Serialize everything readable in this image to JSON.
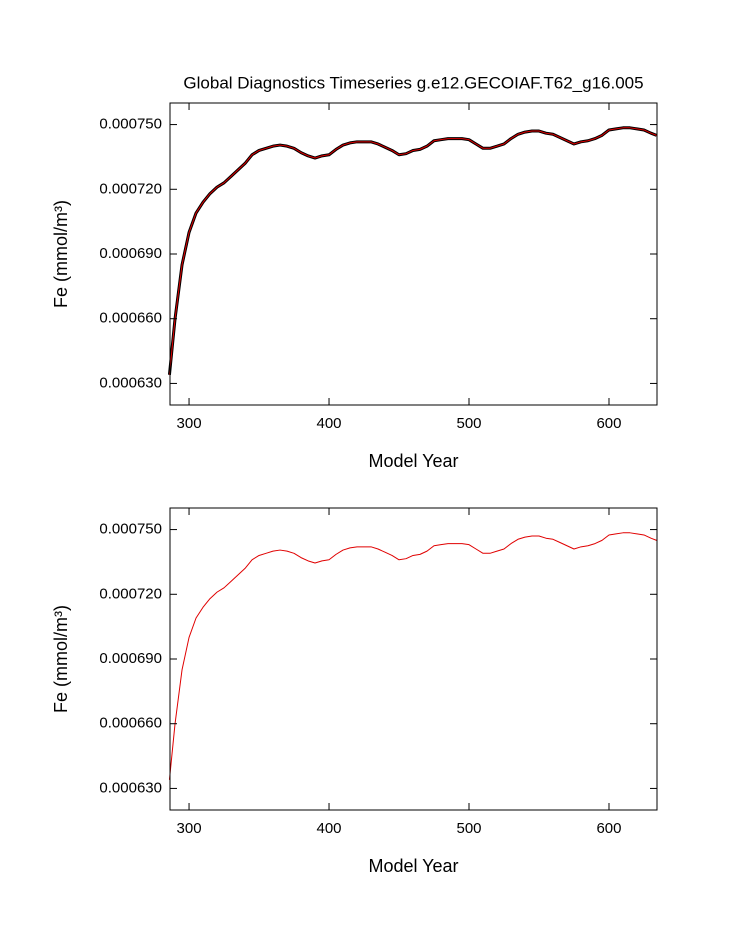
{
  "chart_data": [
    {
      "type": "line",
      "title": "Global Diagnostics Timeseries g.e12.GECOIAF.T62_g16.005",
      "x_label": "Model Year",
      "y_label": "Fe (mmol/m³)",
      "x": [
        286,
        290,
        295,
        300,
        305,
        310,
        315,
        320,
        325,
        330,
        335,
        340,
        345,
        350,
        355,
        360,
        365,
        370,
        375,
        380,
        385,
        390,
        395,
        400,
        405,
        410,
        415,
        420,
        425,
        430,
        435,
        440,
        445,
        450,
        455,
        460,
        465,
        470,
        475,
        480,
        485,
        490,
        495,
        500,
        505,
        510,
        515,
        520,
        525,
        530,
        535,
        540,
        545,
        550,
        555,
        560,
        565,
        570,
        575,
        580,
        585,
        590,
        595,
        600,
        605,
        610,
        615,
        620,
        625,
        630,
        634
      ],
      "values": [
        0.000634,
        0.00066,
        0.000685,
        0.0007,
        0.000709,
        0.000714,
        0.000718,
        0.000721,
        0.000723,
        0.000726,
        0.000729,
        0.000732,
        0.000736,
        0.000738,
        0.000739,
        0.00074,
        0.0007405,
        0.00074,
        0.000739,
        0.000737,
        0.0007355,
        0.0007345,
        0.0007355,
        0.000736,
        0.0007385,
        0.0007405,
        0.0007415,
        0.000742,
        0.000742,
        0.000742,
        0.000741,
        0.0007395,
        0.000738,
        0.000736,
        0.0007365,
        0.000738,
        0.0007385,
        0.00074,
        0.0007425,
        0.000743,
        0.0007435,
        0.0007435,
        0.0007435,
        0.000743,
        0.000741,
        0.000739,
        0.000739,
        0.00074,
        0.000741,
        0.0007435,
        0.0007455,
        0.0007465,
        0.000747,
        0.000747,
        0.000746,
        0.0007455,
        0.000744,
        0.0007425,
        0.000741,
        0.000742,
        0.0007425,
        0.0007435,
        0.000745,
        0.0007475,
        0.000748,
        0.0007485,
        0.0007485,
        0.000748,
        0.0007475,
        0.000746,
        0.000745
      ],
      "colors": [
        "#000000",
        "#e00000"
      ],
      "xlim": [
        286.4,
        634.3
      ],
      "xticks": [
        300,
        400,
        500,
        600
      ],
      "ylim": [
        0.00062,
        0.00076
      ],
      "yticks": [
        {
          "value": 0.00063,
          "label": "0.000630"
        },
        {
          "value": 0.00066,
          "label": "0.000660"
        },
        {
          "value": 0.00069,
          "label": "0.000690"
        },
        {
          "value": 0.00072,
          "label": "0.000720"
        },
        {
          "value": 0.00075,
          "label": "0.000750"
        }
      ]
    },
    {
      "type": "line",
      "x_label": "Model Year",
      "y_label": "Fe (mmol/m³)",
      "x": [
        286,
        290,
        295,
        300,
        305,
        310,
        315,
        320,
        325,
        330,
        335,
        340,
        345,
        350,
        355,
        360,
        365,
        370,
        375,
        380,
        385,
        390,
        395,
        400,
        405,
        410,
        415,
        420,
        425,
        430,
        435,
        440,
        445,
        450,
        455,
        460,
        465,
        470,
        475,
        480,
        485,
        490,
        495,
        500,
        505,
        510,
        515,
        520,
        525,
        530,
        535,
        540,
        545,
        550,
        555,
        560,
        565,
        570,
        575,
        580,
        585,
        590,
        595,
        600,
        605,
        610,
        615,
        620,
        625,
        630,
        634
      ],
      "values": [
        0.000634,
        0.00066,
        0.000685,
        0.0007,
        0.000709,
        0.000714,
        0.000718,
        0.000721,
        0.000723,
        0.000726,
        0.000729,
        0.000732,
        0.000736,
        0.000738,
        0.000739,
        0.00074,
        0.0007405,
        0.00074,
        0.000739,
        0.000737,
        0.0007355,
        0.0007345,
        0.0007355,
        0.000736,
        0.0007385,
        0.0007405,
        0.0007415,
        0.000742,
        0.000742,
        0.000742,
        0.000741,
        0.0007395,
        0.000738,
        0.000736,
        0.0007365,
        0.000738,
        0.0007385,
        0.00074,
        0.0007425,
        0.000743,
        0.0007435,
        0.0007435,
        0.0007435,
        0.000743,
        0.000741,
        0.000739,
        0.000739,
        0.00074,
        0.000741,
        0.0007435,
        0.0007455,
        0.0007465,
        0.000747,
        0.000747,
        0.000746,
        0.0007455,
        0.000744,
        0.0007425,
        0.000741,
        0.000742,
        0.0007425,
        0.0007435,
        0.000745,
        0.0007475,
        0.000748,
        0.0007485,
        0.0007485,
        0.000748,
        0.0007475,
        0.000746,
        0.000745
      ],
      "colors": [
        "#e00000"
      ],
      "xlim": [
        286.4,
        634.3
      ],
      "xticks": [
        300,
        400,
        500,
        600
      ],
      "ylim": [
        0.00062,
        0.00076
      ],
      "yticks": [
        {
          "value": 0.00063,
          "label": "0.000630"
        },
        {
          "value": 0.00066,
          "label": "0.000660"
        },
        {
          "value": 0.00069,
          "label": "0.000690"
        },
        {
          "value": 0.00072,
          "label": "0.000720"
        },
        {
          "value": 0.00075,
          "label": "0.000750"
        }
      ]
    }
  ]
}
